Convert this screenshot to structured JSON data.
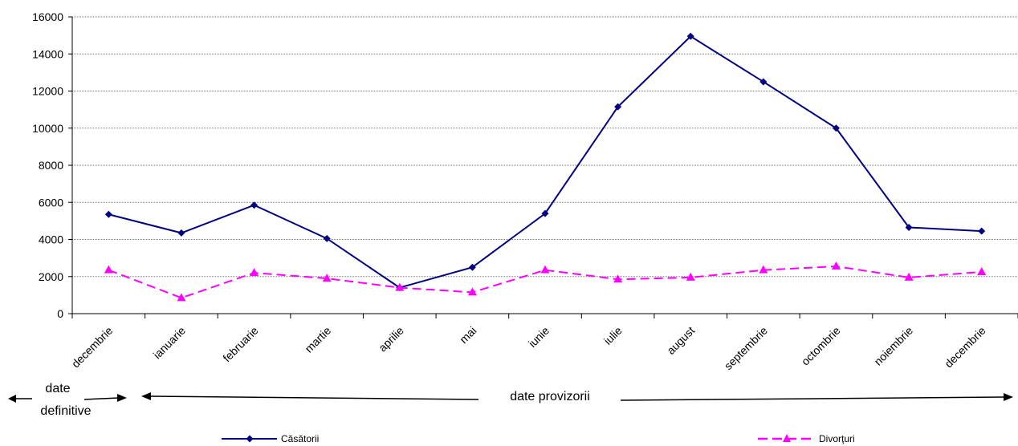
{
  "chart_data": {
    "type": "line",
    "title": "",
    "xlabel": "",
    "ylabel": "",
    "categories": [
      "decembrie",
      "ianuarie",
      "februarie",
      "martie",
      "aprilie",
      "mai",
      "iunie",
      "iulie",
      "august",
      "septembrie",
      "octombrie",
      "noiembrie",
      "decembrie"
    ],
    "ylim": [
      0,
      16000
    ],
    "yticks": [
      0,
      2000,
      4000,
      6000,
      8000,
      10000,
      12000,
      14000,
      16000
    ],
    "grid": true,
    "legend_position": "bottom",
    "series": [
      {
        "name": "Căsătorii",
        "color": "#000080",
        "marker": "diamond",
        "line_style": "solid",
        "values": [
          5350,
          4350,
          5850,
          4050,
          1400,
          2500,
          5400,
          11150,
          14950,
          12500,
          10000,
          4650,
          4450
        ]
      },
      {
        "name": "Divorţuri",
        "color": "#FF00FF",
        "marker": "triangle",
        "line_style": "dashed",
        "values": [
          2350,
          850,
          2200,
          1900,
          1400,
          1150,
          2350,
          1850,
          1950,
          2350,
          2550,
          1950,
          2250
        ]
      }
    ],
    "annotations": {
      "definitive": "date definitive",
      "definitive_line1": "date",
      "definitive_line2": "definitive",
      "provisional": "date provizorii"
    }
  }
}
